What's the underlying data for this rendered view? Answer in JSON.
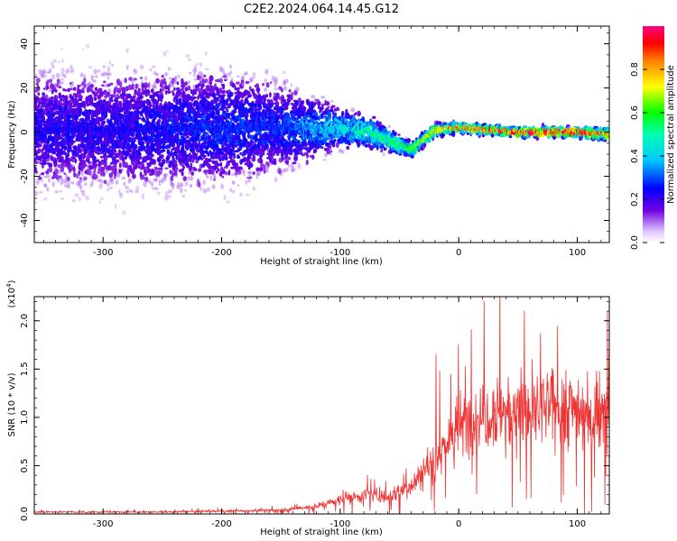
{
  "title": "C2E2.2024.064.14.45.G12",
  "chart_data": [
    {
      "type": "heatmap",
      "xlabel": "Height of straight line (km)",
      "ylabel": "Frequency (Hz)",
      "xlim": [
        -358,
        127
      ],
      "ylim": [
        -50,
        48
      ],
      "xticks": [
        -300,
        -200,
        -100,
        0,
        100
      ],
      "xtick_labels": [
        "-300",
        "-200",
        "-100",
        "0",
        "100"
      ],
      "yticks": [
        -40,
        -20,
        0,
        20,
        40
      ],
      "ytick_labels": [
        "-40",
        "-20",
        "0",
        "20",
        "40"
      ],
      "colorbar": {
        "label": "Normalized spectral amplitude",
        "range": [
          0,
          1
        ],
        "ticks": [
          0.0,
          0.2,
          0.4,
          0.6,
          0.8
        ],
        "tick_labels": [
          "0.0",
          "0.2",
          "0.4",
          "0.6",
          "0.8"
        ],
        "colormap": "rainbow-white-to-magenta"
      },
      "description_points": [
        {
          "x": -300,
          "center_freq": 1,
          "spread_hz": 45,
          "max_amp": 0.25
        },
        {
          "x": -200,
          "center_freq": 2,
          "spread_hz": 45,
          "max_amp": 0.3
        },
        {
          "x": -150,
          "center_freq": 2,
          "spread_hz": 35,
          "max_amp": 0.3
        },
        {
          "x": -100,
          "center_freq": 2,
          "spread_hz": 15,
          "max_amp": 0.45
        },
        {
          "x": -75,
          "center_freq": 0,
          "spread_hz": 12,
          "max_amp": 0.55
        },
        {
          "x": -40,
          "center_freq": -8,
          "spread_hz": 6,
          "max_amp": 0.65
        },
        {
          "x": -20,
          "center_freq": 1,
          "spread_hz": 5,
          "max_amp": 0.8
        },
        {
          "x": 0,
          "center_freq": 2,
          "spread_hz": 4,
          "max_amp": 0.9
        },
        {
          "x": 50,
          "center_freq": 0,
          "spread_hz": 4,
          "max_amp": 1.0
        },
        {
          "x": 100,
          "center_freq": 0,
          "spread_hz": 4,
          "max_amp": 1.0
        },
        {
          "x": 127,
          "center_freq": -1,
          "spread_hz": 5,
          "max_amp": 0.9
        }
      ]
    },
    {
      "type": "line",
      "xlabel": "Height of straight line (km)",
      "ylabel": "SNR (10 * v/v)",
      "scale_label": "(x10",
      "scale_exponent": "4",
      "scale_suffix": ")",
      "xlim": [
        -358,
        127
      ],
      "ylim": [
        0,
        2.25
      ],
      "xticks": [
        -300,
        -200,
        -100,
        0,
        100
      ],
      "xtick_labels": [
        "-300",
        "-200",
        "-100",
        "0",
        "100"
      ],
      "yticks": [
        0,
        0.5,
        1.0,
        1.5,
        2.0
      ],
      "ytick_labels": [
        "0.0",
        "0.5",
        "1.0",
        "1.5",
        "2.0"
      ],
      "color": "#ee3333",
      "series": [
        {
          "x": [
            -358,
            -300,
            -250,
            -200,
            -150,
            -120,
            -100,
            -80,
            -60,
            -40,
            -30,
            -20,
            -10,
            0,
            20,
            40,
            60,
            80,
            100,
            115,
            127
          ],
          "y": [
            0.02,
            0.02,
            0.02,
            0.03,
            0.04,
            0.08,
            0.15,
            0.2,
            0.18,
            0.3,
            0.45,
            0.6,
            0.75,
            0.9,
            1.05,
            1.1,
            1.05,
            1.1,
            1.1,
            1.0,
            1.2
          ]
        }
      ]
    }
  ]
}
